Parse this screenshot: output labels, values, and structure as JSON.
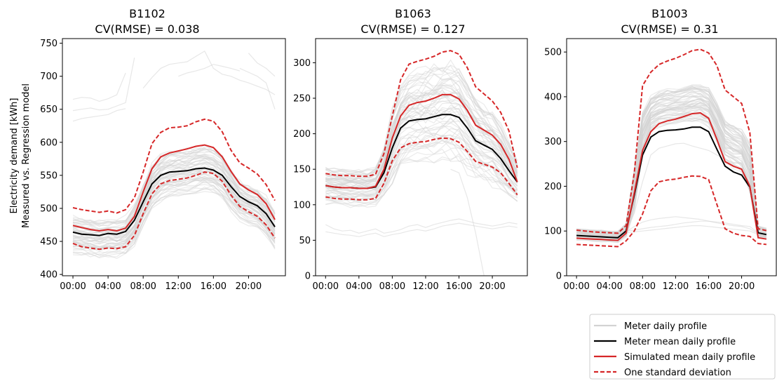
{
  "figure": {
    "ylabel_line1": "Electricity demand [kWh]",
    "ylabel_line2": "Measured vs. Regression model"
  },
  "legend": {
    "placement": "bottom-right",
    "entries": [
      {
        "key": "meter",
        "label": "Meter daily profile",
        "color": "#d3d3d3",
        "style": "solid"
      },
      {
        "key": "meter_mean",
        "label": "Meter mean daily profile",
        "color": "#000000",
        "style": "solid"
      },
      {
        "key": "sim_mean",
        "label": "Simulated mean daily profile",
        "color": "#d62728",
        "style": "solid"
      },
      {
        "key": "std",
        "label": "One standard deviation",
        "color": "#d62728",
        "style": "dashed"
      }
    ]
  },
  "chart_data": [
    {
      "type": "line",
      "title_line1": "B1102",
      "title_line2": "CV(RMSE) = 0.038",
      "xlabel": "",
      "ylabel": "Electricity demand [kWh] Measured vs. Regression model",
      "x": [
        0,
        1,
        2,
        3,
        4,
        5,
        6,
        7,
        8,
        9,
        10,
        11,
        12,
        13,
        14,
        15,
        16,
        17,
        18,
        19,
        20,
        21,
        22,
        23
      ],
      "xlim": [
        -1.2,
        24.2
      ],
      "xticks": [
        0,
        4,
        8,
        12,
        16,
        20
      ],
      "xticklabels": [
        "00:00",
        "04:00",
        "08:00",
        "12:00",
        "16:00",
        "20:00"
      ],
      "ylim": [
        398,
        757
      ],
      "yticks": [
        400,
        450,
        500,
        550,
        600,
        650,
        700,
        750
      ],
      "series": [
        {
          "key": "meter_mean",
          "values": [
            464,
            461,
            460,
            459,
            462,
            461,
            465,
            482,
            510,
            537,
            550,
            555,
            556,
            557,
            560,
            561,
            558,
            550,
            533,
            518,
            510,
            504,
            492,
            472
          ]
        },
        {
          "key": "sim_mean",
          "values": [
            474,
            471,
            468,
            466,
            468,
            466,
            470,
            488,
            525,
            560,
            578,
            584,
            587,
            590,
            594,
            596,
            592,
            578,
            556,
            537,
            528,
            521,
            507,
            483
          ]
        },
        {
          "key": "std_upper",
          "values": [
            501,
            498,
            496,
            494,
            496,
            493,
            498,
            516,
            555,
            598,
            615,
            622,
            623,
            625,
            631,
            635,
            632,
            616,
            588,
            569,
            561,
            552,
            536,
            512
          ]
        },
        {
          "key": "std_lower",
          "values": [
            447,
            442,
            440,
            438,
            440,
            439,
            442,
            459,
            492,
            522,
            537,
            542,
            544,
            546,
            550,
            555,
            553,
            541,
            520,
            503,
            495,
            488,
            475,
            455
          ]
        }
      ],
      "meter_band": {
        "center": [
          460,
          457,
          455,
          453,
          455,
          454,
          458,
          474,
          505,
          532,
          546,
          551,
          553,
          555,
          558,
          560,
          557,
          547,
          529,
          513,
          505,
          499,
          487,
          468
        ],
        "spread": [
          28,
          28,
          28,
          28,
          28,
          28,
          28,
          29,
          31,
          33,
          34,
          34,
          34,
          34,
          34,
          34,
          34,
          33,
          31,
          30,
          29,
          29,
          29,
          28
        ]
      },
      "meter_outliers": [
        {
          "x": [
            0,
            1,
            2,
            3,
            4,
            5,
            6
          ],
          "values": [
            665,
            668,
            667,
            662,
            666,
            672,
            705
          ]
        },
        {
          "x": [
            0,
            1,
            2,
            3,
            4,
            5,
            6,
            7
          ],
          "values": [
            648,
            650,
            652,
            649,
            650,
            655,
            660,
            728
          ]
        },
        {
          "x": [
            0,
            1,
            2,
            3,
            4,
            5,
            6
          ],
          "values": [
            632,
            636,
            638,
            640,
            642,
            648,
            651
          ]
        },
        {
          "x": [
            8,
            9,
            10,
            11,
            12,
            13,
            14,
            15,
            16,
            17,
            18,
            19,
            20,
            21,
            22,
            23
          ],
          "values": [
            682,
            698,
            712,
            718,
            720,
            722,
            730,
            738,
            712,
            703,
            700,
            694,
            690,
            685,
            680,
            672
          ]
        },
        {
          "x": [
            12,
            13,
            14,
            15,
            16,
            17,
            18,
            19
          ],
          "values": [
            700,
            705,
            708,
            712,
            718,
            715,
            712,
            708
          ]
        },
        {
          "x": [
            20,
            21,
            22,
            23
          ],
          "values": [
            735,
            720,
            712,
            700
          ]
        },
        {
          "x": [
            19,
            20,
            21,
            22,
            23
          ],
          "values": [
            712,
            706,
            700,
            690,
            650
          ]
        }
      ]
    },
    {
      "type": "line",
      "title_line1": "B1063",
      "title_line2": "CV(RMSE) = 0.127",
      "xlabel": "",
      "ylabel": "",
      "x": [
        0,
        1,
        2,
        3,
        4,
        5,
        6,
        7,
        8,
        9,
        10,
        11,
        12,
        13,
        14,
        15,
        16,
        17,
        18,
        19,
        20,
        21,
        22,
        23
      ],
      "xlim": [
        -1.2,
        24.2
      ],
      "xticks": [
        0,
        4,
        8,
        12,
        16,
        20
      ],
      "xticklabels": [
        "00:00",
        "04:00",
        "08:00",
        "12:00",
        "16:00",
        "20:00"
      ],
      "ylim": [
        0,
        334
      ],
      "yticks": [
        0,
        50,
        100,
        150,
        200,
        250,
        300
      ],
      "series": [
        {
          "key": "meter_mean",
          "values": [
            127,
            125,
            124,
            124,
            123,
            123,
            125,
            145,
            180,
            208,
            218,
            220,
            221,
            224,
            227,
            227,
            223,
            208,
            190,
            184,
            178,
            165,
            148,
            132
          ]
        },
        {
          "key": "sim_mean",
          "values": [
            127,
            125,
            124,
            124,
            123,
            123,
            126,
            150,
            194,
            225,
            240,
            244,
            246,
            250,
            255,
            255,
            249,
            233,
            212,
            205,
            198,
            185,
            164,
            132
          ]
        },
        {
          "key": "std_upper",
          "values": [
            144,
            142,
            141,
            141,
            140,
            140,
            143,
            172,
            225,
            276,
            298,
            302,
            305,
            309,
            315,
            317,
            312,
            293,
            266,
            256,
            246,
            230,
            204,
            152
          ]
        },
        {
          "key": "std_lower",
          "values": [
            111,
            109,
            108,
            108,
            107,
            107,
            109,
            130,
            162,
            180,
            186,
            188,
            189,
            192,
            194,
            193,
            188,
            175,
            161,
            157,
            153,
            145,
            130,
            114
          ]
        }
      ],
      "meter_band": {
        "center": [
          126,
          124,
          123,
          122,
          122,
          122,
          124,
          143,
          178,
          206,
          216,
          218,
          220,
          222,
          225,
          226,
          222,
          207,
          190,
          183,
          177,
          164,
          147,
          131
        ],
        "spread": [
          26,
          26,
          26,
          26,
          26,
          26,
          28,
          36,
          52,
          62,
          66,
          67,
          68,
          69,
          70,
          70,
          68,
          64,
          58,
          54,
          51,
          46,
          38,
          30
        ]
      },
      "meter_outliers": [
        {
          "x": [
            0,
            1,
            2,
            3,
            4,
            5,
            6,
            7,
            8,
            9,
            10,
            11,
            12,
            13,
            14,
            15,
            16,
            17,
            18,
            19,
            20,
            21,
            22,
            23
          ],
          "values": [
            72,
            66,
            63,
            64,
            60,
            63,
            66,
            60,
            62,
            65,
            70,
            72,
            68,
            72,
            75,
            78,
            80,
            77,
            74,
            72,
            70,
            72,
            75,
            73
          ]
        },
        {
          "x": [
            0,
            1,
            2,
            3,
            4,
            5,
            6,
            7,
            8,
            9,
            10,
            11,
            12,
            13,
            14,
            15,
            16,
            17,
            18,
            19,
            20,
            21,
            22,
            23
          ],
          "values": [
            62,
            60,
            58,
            57,
            55,
            58,
            60,
            55,
            58,
            60,
            63,
            65,
            63,
            66,
            70,
            72,
            74,
            72,
            70,
            68,
            66,
            68,
            70,
            68
          ]
        },
        {
          "x": [
            15,
            16,
            17,
            18,
            19
          ],
          "values": [
            150,
            145,
            110,
            60,
            0
          ]
        }
      ]
    },
    {
      "type": "line",
      "title_line1": "B1003",
      "title_line2": "CV(RMSE) = 0.31",
      "xlabel": "",
      "ylabel": "",
      "x": [
        0,
        1,
        2,
        3,
        4,
        5,
        6,
        7,
        8,
        9,
        10,
        11,
        12,
        13,
        14,
        15,
        16,
        17,
        18,
        19,
        20,
        21,
        22,
        23
      ],
      "xlim": [
        -1.2,
        24.2
      ],
      "xticks": [
        0,
        4,
        8,
        12,
        16,
        20
      ],
      "xticklabels": [
        "00:00",
        "04:00",
        "08:00",
        "12:00",
        "16:00",
        "20:00"
      ],
      "ylim": [
        0,
        530
      ],
      "yticks": [
        0,
        100,
        200,
        300,
        400,
        500
      ],
      "series": [
        {
          "key": "meter_mean",
          "values": [
            90,
            89,
            88,
            87,
            86,
            85,
            100,
            180,
            270,
            310,
            322,
            325,
            326,
            328,
            332,
            332,
            322,
            283,
            245,
            232,
            225,
            198,
            96,
            92
          ]
        },
        {
          "key": "sim_mean",
          "values": [
            84,
            83,
            82,
            81,
            80,
            79,
            95,
            185,
            280,
            322,
            340,
            346,
            350,
            356,
            362,
            364,
            352,
            305,
            255,
            245,
            238,
            200,
            85,
            82
          ]
        },
        {
          "key": "std_upper",
          "values": [
            102,
            100,
            98,
            97,
            96,
            95,
            112,
            230,
            425,
            455,
            472,
            480,
            486,
            494,
            503,
            506,
            498,
            470,
            415,
            400,
            385,
            320,
            105,
            101
          ]
        },
        {
          "key": "std_lower",
          "values": [
            70,
            69,
            68,
            67,
            66,
            65,
            78,
            100,
            138,
            190,
            210,
            214,
            216,
            220,
            223,
            222,
            215,
            160,
            105,
            95,
            90,
            88,
            72,
            70
          ]
        }
      ],
      "meter_band": {
        "center": [
          92,
          91,
          90,
          89,
          88,
          87,
          102,
          190,
          320,
          360,
          372,
          376,
          378,
          380,
          384,
          385,
          376,
          340,
          300,
          288,
          280,
          240,
          98,
          94
        ],
        "spread": [
          12,
          12,
          12,
          12,
          12,
          12,
          15,
          45,
          45,
          38,
          38,
          38,
          38,
          40,
          42,
          42,
          40,
          42,
          45,
          45,
          45,
          50,
          12,
          12
        ]
      },
      "meter_outliers": [
        {
          "x": [
            6,
            7,
            8,
            9,
            10,
            11,
            12,
            13,
            14,
            15,
            16,
            17,
            18,
            19,
            20,
            21,
            22,
            23
          ],
          "values": [
            100,
            140,
            210,
            270,
            285,
            290,
            295,
            296,
            290,
            285,
            280,
            270,
            260,
            250,
            240,
            200,
            95,
            92
          ]
        },
        {
          "x": [
            6,
            7,
            8,
            9,
            10,
            11,
            12,
            13,
            14,
            15,
            16,
            17,
            18,
            19,
            20,
            21,
            22,
            23
          ],
          "values": [
            98,
            110,
            120,
            125,
            128,
            130,
            132,
            130,
            128,
            126,
            122,
            118,
            115,
            112,
            110,
            105,
            94,
            90
          ]
        },
        {
          "x": [
            6,
            7,
            8,
            9,
            10,
            11,
            12,
            13,
            14,
            15,
            16,
            17,
            18,
            19,
            20,
            21,
            22,
            23
          ],
          "values": [
            100,
            102,
            105,
            108,
            110,
            112,
            115,
            118,
            120,
            122,
            122,
            120,
            118,
            115,
            112,
            110,
            96,
            92
          ]
        },
        {
          "x": [
            6,
            7,
            8,
            9,
            10,
            11,
            12,
            13,
            14,
            15,
            16,
            17,
            18,
            19,
            20,
            21,
            22,
            23
          ],
          "values": [
            96,
            98,
            100,
            102,
            104,
            106,
            108,
            110,
            112,
            112,
            110,
            108,
            106,
            104,
            102,
            100,
            92,
            90
          ]
        }
      ]
    }
  ]
}
